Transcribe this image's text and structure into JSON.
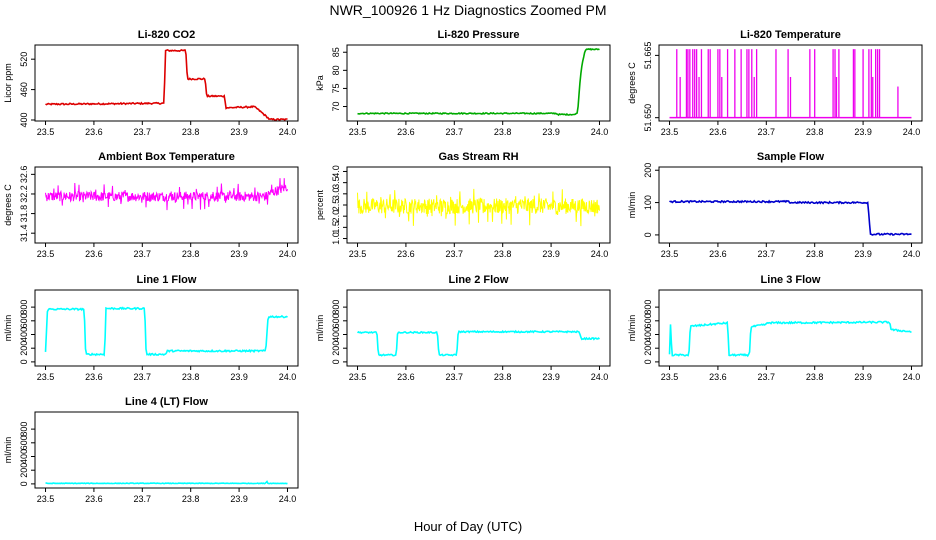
{
  "figure": {
    "title": "NWR_100926  1 Hz Diagnostics Zoomed PM",
    "xlabel": "Hour of Day (UTC)"
  },
  "chart_data": [
    {
      "id": "co2",
      "type": "line",
      "title": "Li-820 CO2",
      "ylabel": "Licor ppm",
      "color": "#dd0000",
      "noise": 1.5,
      "style": "step",
      "xlim": [
        23.5,
        24.0
      ],
      "ylim": [
        398,
        548
      ],
      "x_ticks": [
        "23.5",
        "23.6",
        "23.7",
        "23.8",
        "23.9",
        "24.0"
      ],
      "y_ticks": [
        {
          "v": 400,
          "label": "400"
        },
        {
          "v": 460,
          "label": "460"
        },
        {
          "v": 520,
          "label": "520"
        }
      ],
      "x": [
        23.5,
        23.745,
        23.748,
        23.79,
        23.793,
        23.83,
        23.833,
        23.87,
        23.873,
        23.93,
        23.935,
        23.96,
        23.963,
        23.98,
        24.0
      ],
      "y": [
        431,
        433,
        537,
        537,
        481,
        481,
        447,
        447,
        424,
        426,
        424,
        404,
        401,
        401,
        401
      ]
    },
    {
      "id": "pressure",
      "type": "line",
      "title": "Li-820 Pressure",
      "ylabel": "kPa",
      "color": "#00aa00",
      "noise": 0.15,
      "style": "step",
      "xlim": [
        23.5,
        24.0
      ],
      "ylim": [
        66,
        87
      ],
      "x_ticks": [
        "23.5",
        "23.6",
        "23.7",
        "23.8",
        "23.9",
        "24.0"
      ],
      "y_ticks": [
        {
          "v": 70,
          "label": "70"
        },
        {
          "v": 75,
          "label": "75"
        },
        {
          "v": 80,
          "label": "80"
        },
        {
          "v": 85,
          "label": "85"
        }
      ],
      "x": [
        23.5,
        23.91,
        23.915,
        23.95,
        23.955,
        23.958,
        23.962,
        23.966,
        23.97,
        23.975,
        24.0
      ],
      "y": [
        68.1,
        68.1,
        67.8,
        67.8,
        68.5,
        74,
        80,
        83,
        85.5,
        85.8,
        85.8
      ]
    },
    {
      "id": "temperature",
      "type": "spikes",
      "title": "Li-820 Temperature",
      "ylabel": "degrees C",
      "color": "#ee00ee",
      "xlim": [
        23.5,
        24.0
      ],
      "ylim": [
        51.6492,
        51.6675
      ],
      "x_ticks": [
        "23.5",
        "23.6",
        "23.7",
        "23.8",
        "23.9",
        "24.0"
      ],
      "y_ticks": [
        {
          "v": 51.65,
          "label": "51.650"
        },
        {
          "v": 51.665,
          "label": "51.665"
        }
      ],
      "baseline": 51.65,
      "spikes_x": [
        23.515,
        23.522,
        23.535,
        23.538,
        23.542,
        23.548,
        23.552,
        23.556,
        23.561,
        23.566,
        23.58,
        23.584,
        23.6,
        23.604,
        23.608,
        23.62,
        23.635,
        23.648,
        23.66,
        23.664,
        23.67,
        23.675,
        23.68,
        23.72,
        23.745,
        23.75,
        23.79,
        23.8,
        23.838,
        23.842,
        23.845,
        23.85,
        23.88,
        23.883,
        23.9,
        23.912,
        23.917,
        23.92,
        23.926,
        23.93,
        23.934,
        23.972
      ],
      "spikes_y": [
        51.6665,
        51.6598,
        51.6665,
        51.6665,
        51.6665,
        51.6665,
        51.6665,
        51.6665,
        51.6598,
        51.6665,
        51.6665,
        51.6665,
        51.6665,
        51.6665,
        51.6598,
        51.6665,
        51.6665,
        51.6665,
        51.6665,
        51.6665,
        51.6665,
        51.6598,
        51.6665,
        51.6665,
        51.6665,
        51.6598,
        51.6665,
        51.6665,
        51.6665,
        51.6665,
        51.6598,
        51.6665,
        51.6665,
        51.6665,
        51.6665,
        51.6665,
        51.6665,
        51.6598,
        51.6665,
        51.6665,
        51.6665,
        51.6575
      ]
    },
    {
      "id": "ambient",
      "type": "noise",
      "title": "Ambient Box Temperature",
      "ylabel": "degrees C",
      "color": "#ff00ff",
      "amp": 0.1,
      "spike_amp": 0.28,
      "spike_every": 9,
      "xlim": [
        23.5,
        24.0
      ],
      "ylim": [
        31.2,
        32.75
      ],
      "x_ticks": [
        "23.5",
        "23.6",
        "23.7",
        "23.8",
        "23.9",
        "24.0"
      ],
      "y_ticks": [
        {
          "v": 31.4,
          "label": "31.4"
        },
        {
          "v": 31.8,
          "label": "31.8"
        },
        {
          "v": 32.2,
          "label": "32.2"
        },
        {
          "v": 32.6,
          "label": "32.6"
        }
      ],
      "x": [
        23.5,
        24.0
      ],
      "y": [
        32.15,
        32.15
      ],
      "x_end": [
        23.96,
        24.0
      ],
      "y_end": [
        32.2,
        32.35
      ]
    },
    {
      "id": "rh",
      "type": "noise",
      "title": "Gas Stream RH",
      "ylabel": "percent",
      "color": "#ffff00",
      "amp": 0.35,
      "spike_amp": 0.9,
      "spike_every": 10,
      "xlim": [
        23.5,
        24.0
      ],
      "ylim": [
        0.8,
        4.2
      ],
      "x_ticks": [
        "23.5",
        "23.6",
        "23.7",
        "23.8",
        "23.9",
        "24.0"
      ],
      "y_ticks": [
        {
          "v": 1.0,
          "label": "1.0"
        },
        {
          "v": 1.5,
          "label": "1.5"
        },
        {
          "v": 2.0,
          "label": "2.0"
        },
        {
          "v": 2.5,
          "label": "2.5"
        },
        {
          "v": 3.0,
          "label": "3.0"
        },
        {
          "v": 3.5,
          "label": "3.5"
        },
        {
          "v": 4.0,
          "label": "4.0"
        }
      ],
      "x": [
        23.5,
        24.0
      ],
      "y": [
        2.45,
        2.45
      ]
    },
    {
      "id": "sample_flow",
      "type": "line",
      "title": "Sample Flow",
      "ylabel": "ml/min",
      "color": "#0000cc",
      "noise": 2.5,
      "style": "step",
      "xlim": [
        23.5,
        24.0
      ],
      "ylim": [
        -25,
        210
      ],
      "x_ticks": [
        "23.5",
        "23.6",
        "23.7",
        "23.8",
        "23.9",
        "24.0"
      ],
      "y_ticks": [
        {
          "v": 0,
          "label": "0"
        },
        {
          "v": 100,
          "label": "100"
        },
        {
          "v": 200,
          "label": "200"
        }
      ],
      "x": [
        23.5,
        23.745,
        23.75,
        23.91,
        23.915,
        24.0
      ],
      "y": [
        103,
        103,
        100,
        100,
        2,
        2
      ]
    },
    {
      "id": "line1",
      "type": "line",
      "title": "Line 1 Flow",
      "ylabel": "ml/min",
      "color": "#00ffff",
      "noise": 12,
      "style": "step",
      "xlim": [
        23.5,
        24.0
      ],
      "ylim": [
        -60,
        1050
      ],
      "x_ticks": [
        "23.5",
        "23.6",
        "23.7",
        "23.8",
        "23.9",
        "24.0"
      ],
      "y_ticks": [
        {
          "v": 0,
          "label": "0"
        },
        {
          "v": 200,
          "label": "200"
        },
        {
          "v": 400,
          "label": "400"
        },
        {
          "v": 600,
          "label": "600"
        },
        {
          "v": 800,
          "label": "800"
        }
      ],
      "x": [
        23.5,
        23.504,
        23.58,
        23.583,
        23.622,
        23.625,
        23.705,
        23.708,
        23.748,
        23.752,
        23.955,
        23.96,
        24.0
      ],
      "y": [
        140,
        770,
        770,
        110,
        110,
        780,
        780,
        110,
        110,
        160,
        160,
        660,
        660
      ]
    },
    {
      "id": "line2",
      "type": "line",
      "title": "Line 2 Flow",
      "ylabel": "ml/min",
      "color": "#00ffff",
      "noise": 10,
      "style": "step",
      "xlim": [
        23.5,
        24.0
      ],
      "ylim": [
        -60,
        1050
      ],
      "x_ticks": [
        "23.5",
        "23.6",
        "23.7",
        "23.8",
        "23.9",
        "24.0"
      ],
      "y_ticks": [
        {
          "v": 0,
          "label": "0"
        },
        {
          "v": 200,
          "label": "200"
        },
        {
          "v": 400,
          "label": "400"
        },
        {
          "v": 600,
          "label": "600"
        },
        {
          "v": 800,
          "label": "800"
        }
      ],
      "x": [
        23.5,
        23.54,
        23.543,
        23.58,
        23.583,
        23.665,
        23.668,
        23.705,
        23.708,
        23.958,
        23.962,
        24.0
      ],
      "y": [
        430,
        430,
        100,
        100,
        430,
        430,
        100,
        100,
        440,
        440,
        340,
        340
      ]
    },
    {
      "id": "line3",
      "type": "line",
      "title": "Line 3 Flow",
      "ylabel": "ml/min",
      "color": "#00ffff",
      "noise": 12,
      "style": "step",
      "xlim": [
        23.5,
        24.0
      ],
      "ylim": [
        -60,
        1050
      ],
      "x_ticks": [
        "23.5",
        "23.6",
        "23.7",
        "23.8",
        "23.9",
        "24.0"
      ],
      "y_ticks": [
        {
          "v": 0,
          "label": "0"
        },
        {
          "v": 200,
          "label": "200"
        },
        {
          "v": 400,
          "label": "400"
        },
        {
          "v": 600,
          "label": "600"
        },
        {
          "v": 800,
          "label": "800"
        }
      ],
      "x": [
        23.5,
        23.502,
        23.505,
        23.54,
        23.543,
        23.62,
        23.623,
        23.665,
        23.668,
        23.7,
        23.703,
        23.955,
        23.958,
        24.0
      ],
      "y": [
        100,
        560,
        100,
        100,
        520,
        570,
        100,
        100,
        510,
        550,
        570,
        580,
        470,
        440
      ]
    },
    {
      "id": "line4",
      "type": "line",
      "title": "Line 4 (LT) Flow",
      "ylabel": "ml/min",
      "color": "#00ffff",
      "noise": 4,
      "style": "step",
      "xlim": [
        23.5,
        24.0
      ],
      "ylim": [
        -60,
        1050
      ],
      "x_ticks": [
        "23.5",
        "23.6",
        "23.7",
        "23.8",
        "23.9",
        "24.0"
      ],
      "y_ticks": [
        {
          "v": 0,
          "label": "0"
        },
        {
          "v": 200,
          "label": "200"
        },
        {
          "v": 400,
          "label": "400"
        },
        {
          "v": 600,
          "label": "600"
        },
        {
          "v": 800,
          "label": "800"
        }
      ],
      "x": [
        23.5,
        23.955,
        23.957,
        23.959,
        24.0
      ],
      "y": [
        8,
        8,
        50,
        8,
        8
      ]
    }
  ]
}
